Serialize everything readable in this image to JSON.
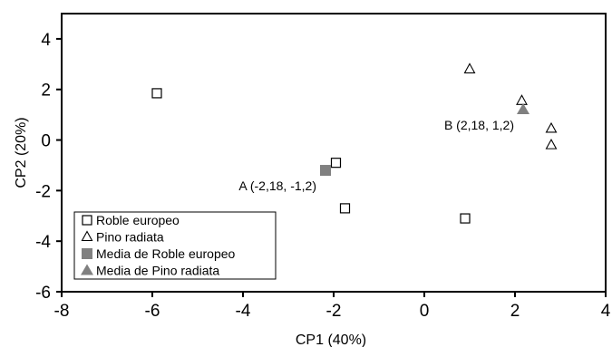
{
  "chart_data": {
    "type": "scatter",
    "title": "",
    "xlabel": "CP1  (40%)",
    "ylabel": "CP2 (20%)",
    "xlim": [
      -8,
      4
    ],
    "ylim": [
      -6,
      5
    ],
    "xticks": [
      -8,
      -6,
      -4,
      -2,
      0,
      2,
      4
    ],
    "yticks": [
      -6,
      -4,
      -2,
      0,
      2,
      4
    ],
    "grid": false,
    "legend_position": "bottom-left",
    "series": [
      {
        "name": "Roble europeo",
        "marker": "square-open",
        "color": "#000000",
        "points": [
          {
            "x": -5.9,
            "y": 1.85
          },
          {
            "x": -1.95,
            "y": -0.9
          },
          {
            "x": -1.75,
            "y": -2.7
          },
          {
            "x": 0.9,
            "y": -3.1
          }
        ]
      },
      {
        "name": "Pino radiata",
        "marker": "triangle-open",
        "color": "#000000",
        "points": [
          {
            "x": 1.0,
            "y": 2.8
          },
          {
            "x": 2.15,
            "y": 1.55
          },
          {
            "x": 2.8,
            "y": 0.45
          },
          {
            "x": 2.8,
            "y": -0.2
          }
        ]
      },
      {
        "name": "Media de Roble europeo",
        "marker": "square-filled",
        "color": "#808080",
        "points": [
          {
            "x": -2.18,
            "y": -1.2
          }
        ]
      },
      {
        "name": "Media de Pino radiata",
        "marker": "triangle-filled",
        "color": "#808080",
        "points": [
          {
            "x": 2.18,
            "y": 1.2
          }
        ]
      }
    ],
    "annotations": [
      {
        "text": "A (-2,18, -1,2)",
        "x": -2.18,
        "y": -1.2,
        "anchor": "below-left"
      },
      {
        "text": "B (2,18, 1,2)",
        "x": 2.18,
        "y": 1.2,
        "anchor": "below-left"
      }
    ]
  }
}
